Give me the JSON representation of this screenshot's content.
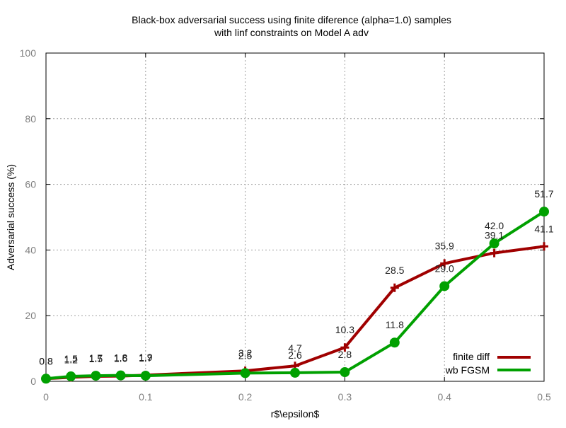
{
  "chart_data": {
    "type": "line",
    "title_lines": [
      "Black-box adversarial success using finite diference (alpha=1.0) samples",
      "with linf constraints on Model A adv"
    ],
    "xlabel": "r$\\epsilon$",
    "ylabel": "Adversarial success (%)",
    "xlim": [
      0,
      0.5
    ],
    "ylim": [
      0,
      100
    ],
    "xticks": [
      0,
      0.1,
      0.2,
      0.3,
      0.4,
      0.5
    ],
    "xtick_labels": [
      "0",
      "0.1",
      "0.2",
      "0.3",
      "0.4",
      "0.5"
    ],
    "yticks": [
      0,
      20,
      40,
      60,
      80,
      100
    ],
    "ytick_labels": [
      "0",
      "20",
      "40",
      "60",
      "80",
      "100"
    ],
    "grid": true,
    "legend_position": "bottom-right",
    "series": [
      {
        "name": "finite diff",
        "color": "#a00000",
        "marker": "plus",
        "x": [
          0,
          0.025,
          0.05,
          0.075,
          0.1,
          0.2,
          0.25,
          0.3,
          0.35,
          0.4,
          0.45,
          0.5
        ],
        "y": [
          0.8,
          1.2,
          1.5,
          1.6,
          1.9,
          3.2,
          4.7,
          10.3,
          28.5,
          35.9,
          39.1,
          41.1
        ],
        "labels": [
          "0.8",
          "1.2",
          "1.5",
          "1.6",
          "1.9",
          "3.2",
          "4.7",
          "10.3",
          "28.5",
          "35.9",
          "39.1",
          "41.1"
        ]
      },
      {
        "name": "wb FGSM",
        "color": "#00a000",
        "marker": "circle",
        "x": [
          0,
          0.025,
          0.05,
          0.075,
          0.1,
          0.2,
          0.25,
          0.3,
          0.35,
          0.4,
          0.45,
          0.5
        ],
        "y": [
          0.8,
          1.5,
          1.7,
          1.8,
          1.7,
          2.5,
          2.6,
          2.8,
          11.8,
          29.0,
          42.0,
          51.7
        ],
        "labels": [
          "0.8",
          "1.5",
          "1.7",
          "1.8",
          "1.7",
          "2.5",
          "2.6",
          "2.8",
          "11.8",
          "29.0",
          "42.0",
          "51.7"
        ]
      }
    ]
  }
}
